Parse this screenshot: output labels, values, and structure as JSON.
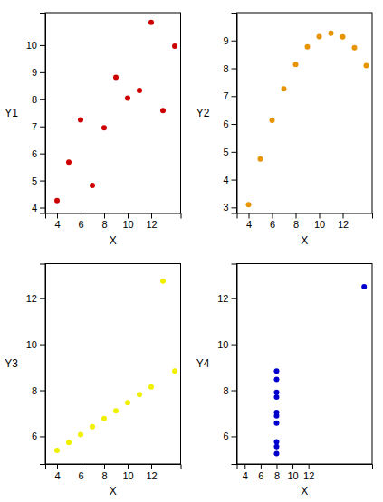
{
  "chart_data": [
    {
      "type": "scatter",
      "xlabel": "X",
      "ylabel": "Y1",
      "color": "#cc0000",
      "x": [
        10,
        8,
        13,
        9,
        11,
        14,
        6,
        4,
        12,
        7,
        5
      ],
      "values": [
        8.04,
        6.95,
        7.58,
        8.81,
        8.33,
        9.96,
        7.24,
        4.26,
        10.84,
        4.82,
        5.68
      ],
      "xlim": [
        3.0,
        14.5
      ],
      "xticks": [
        4,
        6,
        8,
        10,
        12
      ],
      "ylim": [
        3.8,
        11.2
      ],
      "yticks": [
        4,
        5,
        6,
        7,
        8,
        9,
        10
      ]
    },
    {
      "type": "scatter",
      "xlabel": "X",
      "ylabel": "Y2",
      "color": "#e69500",
      "x": [
        10,
        8,
        13,
        9,
        11,
        14,
        6,
        4,
        12,
        7,
        5
      ],
      "values": [
        9.14,
        8.14,
        8.74,
        8.77,
        9.26,
        8.1,
        6.13,
        3.1,
        9.13,
        7.26,
        4.74
      ],
      "xlim": [
        3.0,
        14.5
      ],
      "xticks": [
        4,
        6,
        8,
        10,
        12
      ],
      "ylim": [
        2.8,
        10.0
      ],
      "yticks": [
        3,
        4,
        5,
        6,
        7,
        8,
        9
      ]
    },
    {
      "type": "scatter",
      "xlabel": "X",
      "ylabel": "Y3",
      "color": "#f0f000",
      "x": [
        10,
        8,
        13,
        9,
        11,
        14,
        6,
        4,
        12,
        7,
        5
      ],
      "values": [
        7.46,
        6.77,
        12.74,
        7.11,
        7.81,
        8.84,
        6.08,
        5.39,
        8.15,
        6.42,
        5.73
      ],
      "xlim": [
        3.0,
        14.5
      ],
      "xticks": [
        4,
        6,
        8,
        10,
        12
      ],
      "ylim": [
        4.8,
        13.5
      ],
      "yticks": [
        6,
        8,
        10,
        12
      ]
    },
    {
      "type": "scatter",
      "xlabel": "X",
      "ylabel": "Y4",
      "color": "#0000cc",
      "x": [
        8,
        8,
        8,
        8,
        8,
        8,
        8,
        19,
        8,
        8,
        8
      ],
      "values": [
        6.58,
        5.76,
        7.71,
        8.84,
        8.47,
        7.04,
        5.25,
        12.5,
        5.56,
        7.91,
        6.89
      ],
      "xlim": [
        3.0,
        20.0
      ],
      "xticks": [
        4,
        6,
        8,
        10,
        12
      ],
      "ylim": [
        4.8,
        13.5
      ],
      "yticks": [
        6,
        8,
        10,
        12
      ]
    }
  ]
}
